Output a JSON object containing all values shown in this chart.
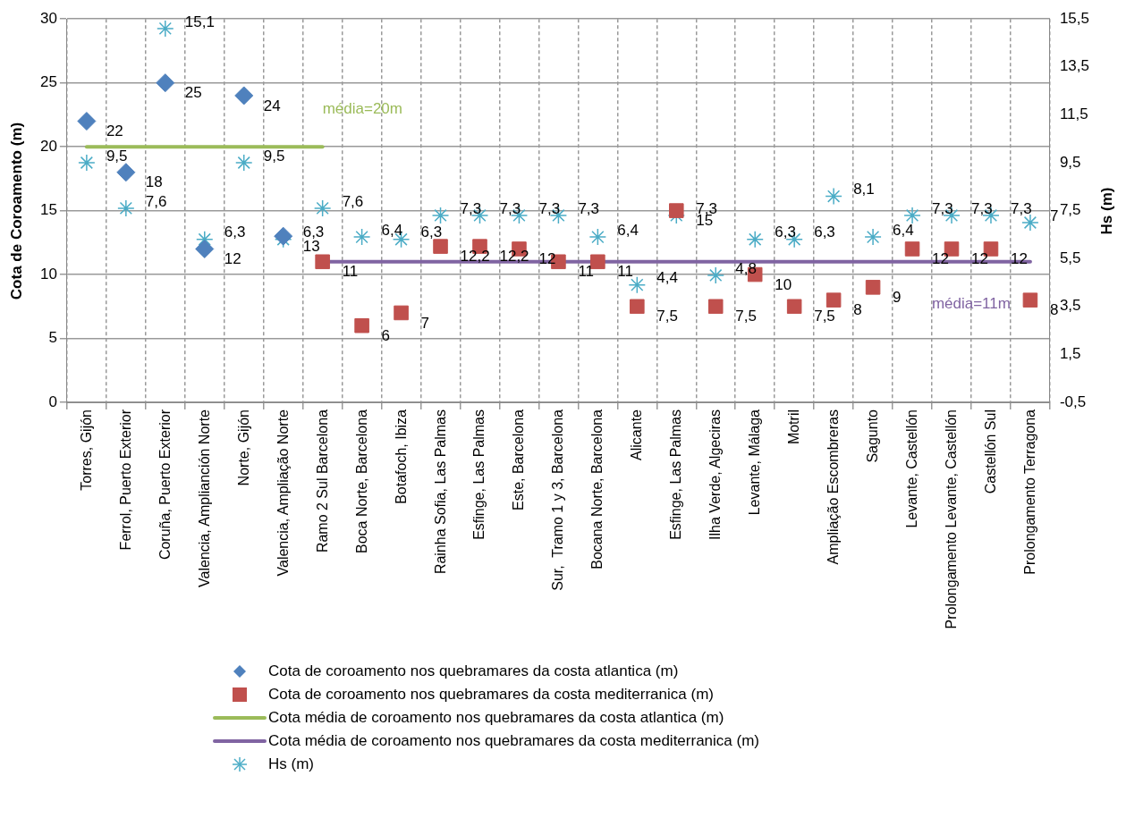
{
  "chart_data": {
    "type": "scatter",
    "ylabel": "Cota de Coroamento (m)",
    "y2label": "Hs (m)",
    "categories": [
      "Torres, Gijón",
      "Ferrol, Puerto Exterior",
      "Coruña, Puerto Exterior",
      "Valencia, Amplianción Norte",
      "Norte, Gijón",
      "Valencia, Ampliação Norte",
      "Ramo 2 Sul Barcelona",
      "Boca Norte, Barcelona",
      "Botafoch, Ibiza",
      "Rainha Sofia, Las Palmas",
      "Esfinge, Las Palmas",
      "Este, Barcelona",
      "Sur,  Tramo 1 y 3, Barcelona",
      "Bocana Norte, Barcelona",
      "Alicante",
      "Esfinge, Las Palmas",
      "Ilha Verde, Algeciras",
      "Levante, Málaga",
      "Motril",
      "Ampliação Escombreras",
      "Sagunto",
      "Levante, Castellón",
      "Prolongamento Levante, Castellón",
      "Castellón Sul",
      "Prolongamento Terragona"
    ],
    "series": [
      {
        "name": "Cota de coroamento nos quebramares da costa atlantica (m)",
        "marker": "diamond",
        "color": "#4f81bd",
        "values": [
          22,
          18,
          25,
          12,
          24,
          13,
          null,
          null,
          null,
          null,
          null,
          null,
          null,
          null,
          null,
          null,
          null,
          null,
          null,
          null,
          null,
          null,
          null,
          null,
          null
        ],
        "value_labels": [
          "22",
          "18",
          "25",
          "12",
          "24",
          "13",
          null,
          null,
          null,
          null,
          null,
          null,
          null,
          null,
          null,
          null,
          null,
          null,
          null,
          null,
          null,
          null,
          null,
          null,
          null
        ]
      },
      {
        "name": "Cota de coroamento nos quebramares da costa mediterranica (m)",
        "marker": "square",
        "color": "#c0504d",
        "values": [
          null,
          null,
          null,
          null,
          null,
          null,
          11,
          6,
          7,
          12.2,
          12.2,
          12,
          11,
          11,
          7.5,
          15,
          7.5,
          10,
          7.5,
          8,
          9,
          12,
          12,
          12,
          8
        ],
        "value_labels": [
          null,
          null,
          null,
          null,
          null,
          null,
          "11",
          "6",
          "7",
          "12,2",
          "12,2",
          "12",
          "11",
          "11",
          "7,5",
          "15",
          "7,5",
          "10",
          "7,5",
          "8",
          "9",
          "12",
          "12",
          "12",
          "8"
        ]
      },
      {
        "name": "Cota média de coroamento nos quebramares da costa atlantica (m)",
        "type": "line",
        "marker": "none",
        "color": "#9bbb59",
        "values": [
          20,
          20,
          20,
          20,
          20,
          20,
          20,
          null,
          null,
          null,
          null,
          null,
          null,
          null,
          null,
          null,
          null,
          null,
          null,
          null,
          null,
          null,
          null,
          null,
          null
        ]
      },
      {
        "name": "Cota média de coroamento nos quebramares da costa mediterranica (m)",
        "type": "line",
        "marker": "none",
        "color": "#8064a2",
        "values": [
          null,
          null,
          null,
          null,
          null,
          null,
          11,
          11,
          11,
          11,
          11,
          11,
          11,
          11,
          11,
          11,
          11,
          11,
          11,
          11,
          11,
          11,
          11,
          11,
          11
        ]
      },
      {
        "name": "Hs (m)",
        "marker": "cross",
        "axis": "y2",
        "color": "#4bacc6",
        "values": [
          9.5,
          7.6,
          15.1,
          6.3,
          9.5,
          6.3,
          7.6,
          6.4,
          6.3,
          7.3,
          7.3,
          7.3,
          7.3,
          6.4,
          4.4,
          7.3,
          4.8,
          6.3,
          6.3,
          8.1,
          6.4,
          7.3,
          7.3,
          7.3,
          7
        ],
        "value_labels": [
          "9,5",
          "7,6",
          "15,1",
          "6,3",
          "9,5",
          "6,3",
          "7,6",
          "6,4",
          "6,3",
          "7,3",
          "7,3",
          "7,3",
          "7,3",
          "6,4",
          "4,4",
          "7,3",
          "4,8",
          "6,3",
          "6,3",
          "8,1",
          "6,4",
          "7,3",
          "7,3",
          "7,3",
          "7"
        ]
      }
    ],
    "ylim": [
      0,
      30
    ],
    "yticks": [
      0,
      5,
      10,
      15,
      20,
      25,
      30
    ],
    "y2lim": [
      -0.5,
      15.5
    ],
    "y2ticks": [
      {
        "value": -0.5,
        "label": "-0,5"
      },
      {
        "value": 1.5,
        "label": "1,5"
      },
      {
        "value": 3.5,
        "label": "3,5"
      },
      {
        "value": 5.5,
        "label": "5,5"
      },
      {
        "value": 7.5,
        "label": "7,5"
      },
      {
        "value": 9.5,
        "label": "9,5"
      },
      {
        "value": 11.5,
        "label": "11,5"
      },
      {
        "value": 13.5,
        "label": "13,5"
      },
      {
        "value": 15.5,
        "label": "15,5"
      }
    ],
    "annotations": [
      "média=20m",
      "média=11m"
    ],
    "grid": true,
    "legend": "bottom"
  }
}
